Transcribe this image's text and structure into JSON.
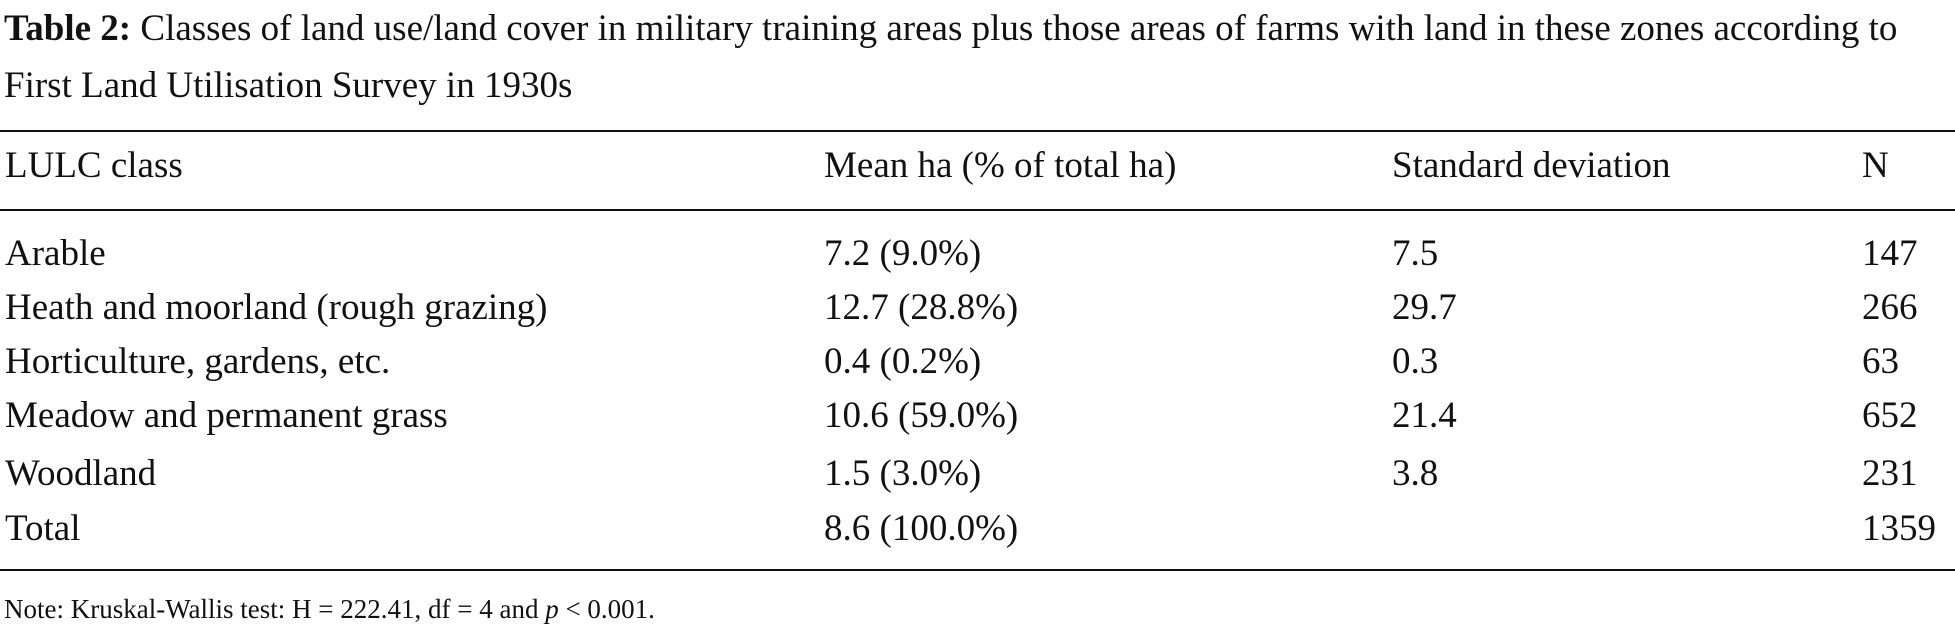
{
  "table_caption": {
    "label": "Table 2:",
    "text": "Classes of land use/land cover in military training areas plus those areas of farms with land in these zones according to First Land Utilisation Survey in 1930s"
  },
  "table": {
    "header": [
      "LULC class",
      "Mean ha (% of total ha)",
      "Standard deviation",
      "N"
    ],
    "rows": [
      {
        "class": "Arable",
        "mean": "7.2 (9.0%)",
        "sd": "7.5",
        "n": "147"
      },
      {
        "class": "Heath and moorland (rough grazing)",
        "mean": "12.7 (28.8%)",
        "sd": "29.7",
        "n": "266"
      },
      {
        "class": "Horticulture, gardens, etc.",
        "mean": "0.4 (0.2%)",
        "sd": "0.3",
        "n": "63"
      },
      {
        "class": "Meadow and permanent grass",
        "mean": "10.6 (59.0%)",
        "sd": "21.4",
        "n": "652"
      },
      {
        "class": "Woodland",
        "mean": "1.5 (3.0%)",
        "sd": "3.8",
        "n": "231"
      },
      {
        "class": "Total",
        "mean": "8.6 (100.0%)",
        "n": "1359"
      }
    ]
  },
  "note": [
    "Note: Kruskal-Wallis test: H = 222.41, df = 4 and ",
    "p",
    " < 0.001."
  ]
}
